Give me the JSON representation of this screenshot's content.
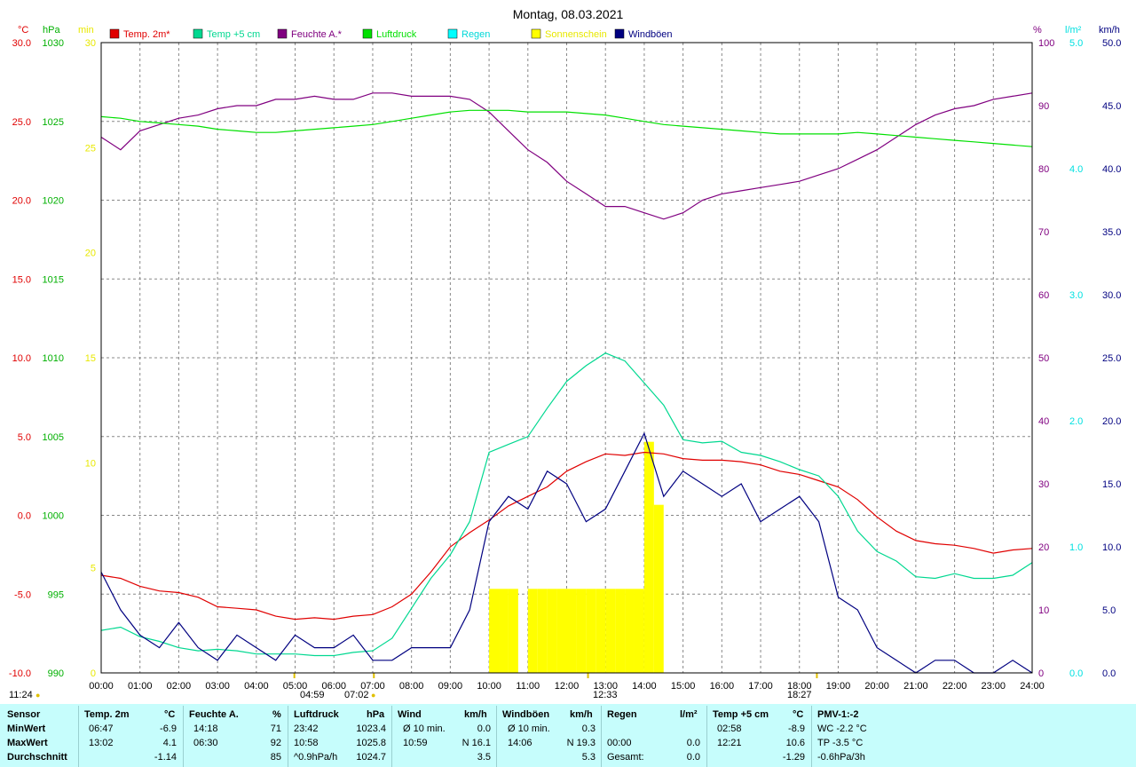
{
  "title": "Montag, 08.03.2021",
  "legend": [
    {
      "label": "Temp. 2m*",
      "color": "#e00000"
    },
    {
      "label": "Temp +5 cm",
      "color": "#00d890"
    },
    {
      "label": "Feuchte A.*",
      "color": "#800080"
    },
    {
      "label": "Luftdruck",
      "color": "#00e000"
    },
    {
      "label": "Regen",
      "color": "#00ffff"
    },
    {
      "label": "Sonnenschein",
      "color": "#ffff00"
    },
    {
      "label": "Windböen",
      "color": "#000080"
    }
  ],
  "axes": {
    "left_units": {
      "temp": "°C",
      "pressure": "hPa",
      "minutes": "min"
    },
    "right_units": {
      "humidity": "%",
      "rain": "l/m²",
      "wind": "km/h"
    },
    "temp_ticks": [
      "30.0",
      "25.0",
      "20.0",
      "15.0",
      "10.0",
      "5.0",
      "0.0",
      "-5.0",
      "-10.0"
    ],
    "pressure_ticks": [
      "1030",
      "1025",
      "1020",
      "1015",
      "1010",
      "1005",
      "1000",
      "995",
      "990"
    ],
    "minutes_ticks": [
      "30",
      "25",
      "20",
      "15",
      "10",
      "5",
      "0"
    ],
    "humidity_ticks": [
      "100",
      "90",
      "80",
      "70",
      "60",
      "50",
      "40",
      "30",
      "20",
      "10",
      "0"
    ],
    "rain_ticks": [
      "5.0",
      "4.0",
      "3.0",
      "2.0",
      "1.0",
      "0.0"
    ],
    "wind_ticks": [
      "50.0",
      "45.0",
      "40.0",
      "35.0",
      "30.0",
      "25.0",
      "20.0",
      "15.0",
      "10.0",
      "5.0",
      "0.0"
    ],
    "hour_labels": [
      "00:00",
      "01:00",
      "02:00",
      "03:00",
      "04:00",
      "05:00",
      "06:00",
      "07:00",
      "08:00",
      "09:00",
      "10:00",
      "11:00",
      "12:00",
      "13:00",
      "14:00",
      "15:00",
      "16:00",
      "17:00",
      "18:00",
      "19:00",
      "20:00",
      "21:00",
      "22:00",
      "23:00",
      "24:00"
    ]
  },
  "sun_marks": {
    "daylength": "11:24",
    "sunrise": "04:59",
    "civil": "07:02",
    "noon": "12:33",
    "sunset": "18:27"
  },
  "chart_data": {
    "type": "line",
    "x_unit": "hour",
    "series": [
      {
        "name": "Temp. 2m*",
        "axis": "temp",
        "color": "#e00000",
        "x": [
          0,
          0.5,
          1,
          1.5,
          2,
          2.5,
          3,
          3.5,
          4,
          4.5,
          5,
          5.5,
          6,
          6.5,
          7,
          7.5,
          8,
          8.5,
          9,
          9.5,
          10,
          10.5,
          11,
          11.5,
          12,
          12.5,
          13,
          13.5,
          14,
          14.5,
          15,
          15.5,
          16,
          16.5,
          17,
          17.5,
          18,
          18.5,
          19,
          19.5,
          20,
          20.5,
          21,
          21.5,
          22,
          22.5,
          23,
          23.5,
          24
        ],
        "y": [
          -3.8,
          -4.0,
          -4.5,
          -4.8,
          -4.9,
          -5.2,
          -5.8,
          -5.9,
          -6.0,
          -6.4,
          -6.6,
          -6.5,
          -6.6,
          -6.4,
          -6.3,
          -5.8,
          -5.0,
          -3.6,
          -2.0,
          -1.1,
          -0.3,
          0.6,
          1.2,
          1.8,
          2.8,
          3.4,
          3.9,
          3.8,
          4.0,
          3.9,
          3.6,
          3.5,
          3.5,
          3.4,
          3.2,
          2.8,
          2.6,
          2.2,
          1.8,
          1.0,
          -0.1,
          -1.0,
          -1.6,
          -1.8,
          -1.9,
          -2.1,
          -2.4,
          -2.2,
          -2.1
        ]
      },
      {
        "name": "Temp +5 cm",
        "axis": "temp",
        "color": "#00d890",
        "x": [
          0,
          0.5,
          1,
          1.5,
          2,
          2.5,
          3,
          3.5,
          4,
          4.5,
          5,
          5.5,
          6,
          6.5,
          7,
          7.5,
          8,
          8.5,
          9,
          9.5,
          10,
          10.5,
          11,
          11.5,
          12,
          12.5,
          13,
          13.5,
          14,
          14.5,
          15,
          15.5,
          16,
          16.5,
          17,
          17.5,
          18,
          18.5,
          19,
          19.5,
          20,
          20.5,
          21,
          21.5,
          22,
          22.5,
          23,
          23.5,
          24
        ],
        "y": [
          -7.3,
          -7.1,
          -7.7,
          -8.0,
          -8.4,
          -8.6,
          -8.5,
          -8.6,
          -8.8,
          -8.8,
          -8.8,
          -8.9,
          -8.9,
          -8.7,
          -8.6,
          -7.8,
          -5.9,
          -4.0,
          -2.5,
          -0.4,
          4.0,
          4.5,
          5.0,
          6.8,
          8.5,
          9.5,
          10.3,
          9.8,
          8.4,
          7.0,
          4.8,
          4.6,
          4.7,
          4.0,
          3.8,
          3.4,
          2.9,
          2.5,
          1.2,
          -1.0,
          -2.3,
          -2.9,
          -3.9,
          -4.0,
          -3.7,
          -4.0,
          -4.0,
          -3.8,
          -3.0
        ]
      },
      {
        "name": "Feuchte A.*",
        "axis": "humidity",
        "color": "#800080",
        "x": [
          0,
          0.5,
          1,
          1.5,
          2,
          2.5,
          3,
          3.5,
          4,
          4.5,
          5,
          5.5,
          6,
          6.5,
          7,
          7.5,
          8,
          8.5,
          9,
          9.5,
          10,
          10.5,
          11,
          11.5,
          12,
          12.5,
          13,
          13.5,
          14,
          14.5,
          15,
          15.5,
          16,
          16.5,
          17,
          17.5,
          18,
          18.5,
          19,
          19.5,
          20,
          20.5,
          21,
          21.5,
          22,
          22.5,
          23,
          23.5,
          24
        ],
        "y": [
          85,
          83,
          86,
          87,
          88,
          88.5,
          89.5,
          90,
          90,
          91,
          91,
          91.5,
          91,
          91,
          92,
          92,
          91.5,
          91.5,
          91.5,
          91,
          89,
          86,
          83,
          81,
          78,
          76,
          74,
          74,
          73,
          72,
          73,
          75,
          76,
          76.5,
          77,
          77.5,
          78,
          79,
          80,
          81.5,
          83,
          85,
          87,
          88.5,
          89.5,
          90,
          91,
          91.5,
          92
        ]
      },
      {
        "name": "Luftdruck",
        "axis": "pressure",
        "color": "#00e000",
        "x": [
          0,
          0.5,
          1,
          1.5,
          2,
          2.5,
          3,
          3.5,
          4,
          4.5,
          5,
          5.5,
          6,
          6.5,
          7,
          7.5,
          8,
          8.5,
          9,
          9.5,
          10,
          10.5,
          11,
          11.5,
          12,
          12.5,
          13,
          13.5,
          14,
          14.5,
          15,
          15.5,
          16,
          16.5,
          17,
          17.5,
          18,
          18.5,
          19,
          19.5,
          20,
          20.5,
          21,
          21.5,
          22,
          22.5,
          23,
          23.5,
          24
        ],
        "y": [
          1025.3,
          1025.2,
          1025.0,
          1024.9,
          1024.8,
          1024.7,
          1024.5,
          1024.4,
          1024.3,
          1024.3,
          1024.4,
          1024.5,
          1024.6,
          1024.7,
          1024.8,
          1025.0,
          1025.2,
          1025.4,
          1025.6,
          1025.7,
          1025.7,
          1025.7,
          1025.6,
          1025.6,
          1025.6,
          1025.5,
          1025.4,
          1025.2,
          1025.0,
          1024.8,
          1024.7,
          1024.6,
          1024.5,
          1024.4,
          1024.3,
          1024.2,
          1024.2,
          1024.2,
          1024.2,
          1024.3,
          1024.2,
          1024.1,
          1024.0,
          1023.9,
          1023.8,
          1023.7,
          1023.6,
          1023.5,
          1023.4
        ]
      },
      {
        "name": "Windböen",
        "axis": "wind",
        "color": "#000080",
        "x": [
          0,
          0.5,
          1,
          1.5,
          2,
          2.5,
          3,
          3.5,
          4,
          4.5,
          5,
          5.5,
          6,
          6.5,
          7,
          7.5,
          8,
          8.5,
          9,
          9.5,
          10,
          10.5,
          11,
          11.5,
          12,
          12.5,
          13,
          13.5,
          14,
          14.5,
          15,
          15.5,
          16,
          16.5,
          17,
          17.5,
          18,
          18.5,
          19,
          19.5,
          20,
          20.5,
          21,
          21.5,
          22,
          22.5,
          23,
          23.5,
          24
        ],
        "y": [
          8,
          5,
          3,
          2,
          4,
          2,
          1,
          3,
          2,
          1,
          3,
          2,
          2,
          3,
          1,
          1,
          2,
          2,
          2,
          5,
          12,
          14,
          13,
          16,
          15,
          12,
          13,
          16,
          19,
          14,
          16,
          15,
          14,
          15,
          12,
          13,
          14,
          12,
          6,
          5,
          2,
          1,
          0,
          1,
          1,
          0,
          0,
          1,
          0
        ]
      }
    ],
    "sunshine": {
      "axis": "minutes",
      "hours": [
        10,
        10.25,
        10.5,
        10.75,
        11,
        11.25,
        11.5,
        11.75,
        12,
        12.25,
        12.5,
        12.75,
        13,
        13.25,
        13.5,
        13.75,
        14,
        14.25,
        14.5
      ],
      "minutes": [
        4,
        4,
        4,
        0,
        4,
        4,
        4,
        4,
        4,
        4,
        4,
        4,
        4,
        4,
        4,
        4,
        11,
        8,
        0
      ]
    }
  },
  "table": {
    "headers": {
      "sensor": "Sensor",
      "temp": "Temp. 2m",
      "temp_unit": "°C",
      "hum": "Feuchte A.",
      "hum_unit": "%",
      "press": "Luftdruck",
      "press_unit": "hPa",
      "wind": "Wind",
      "wind_unit": "km/h",
      "gust": "Windböen",
      "gust_unit": "km/h",
      "rain": "Regen",
      "rain_unit": "l/m²",
      "t5": "Temp +5 cm",
      "t5_unit": "°C",
      "pmv": "PMV-1:-2"
    },
    "row_labels": [
      "MinWert",
      "MaxWert",
      "Durchschnitt"
    ],
    "rows": [
      {
        "temp_t": "06:47",
        "temp_v": "-6.9",
        "hum_t": "14:18",
        "hum_v": "71",
        "press_t": "23:42",
        "press_v": "1023.4",
        "wind_t": "Ø 10 min.",
        "wind_v": "0.0",
        "gust_t": "Ø 10 min.",
        "gust_v": "0.3",
        "rain_t": "",
        "rain_v": "",
        "t5_t": "02:58",
        "t5_v": "-8.9",
        "pmv": "WC -2.2 °C"
      },
      {
        "temp_t": "13:02",
        "temp_v": "4.1",
        "hum_t": "06:30",
        "hum_v": "92",
        "press_t": "10:58",
        "press_v": "1025.8",
        "wind_t": "10:59",
        "wind_v": "N 16.1",
        "gust_t": "14:06",
        "gust_v": "N 19.3",
        "rain_t": "00:00",
        "rain_v": "0.0",
        "t5_t": "12:21",
        "t5_v": "10.6",
        "pmv": "TP -3.5 °C"
      },
      {
        "temp_t": "",
        "temp_v": "-1.14",
        "hum_t": "",
        "hum_v": "85",
        "press_t": "^0.9hPa/h",
        "press_v": "1024.7",
        "wind_t": "",
        "wind_v": "3.5",
        "gust_t": "",
        "gust_v": "5.3",
        "rain_t": "Gesamt:",
        "rain_v": "0.0",
        "t5_t": "",
        "t5_v": "-1.29",
        "pmv": "-0.6hPa/3h"
      }
    ]
  }
}
